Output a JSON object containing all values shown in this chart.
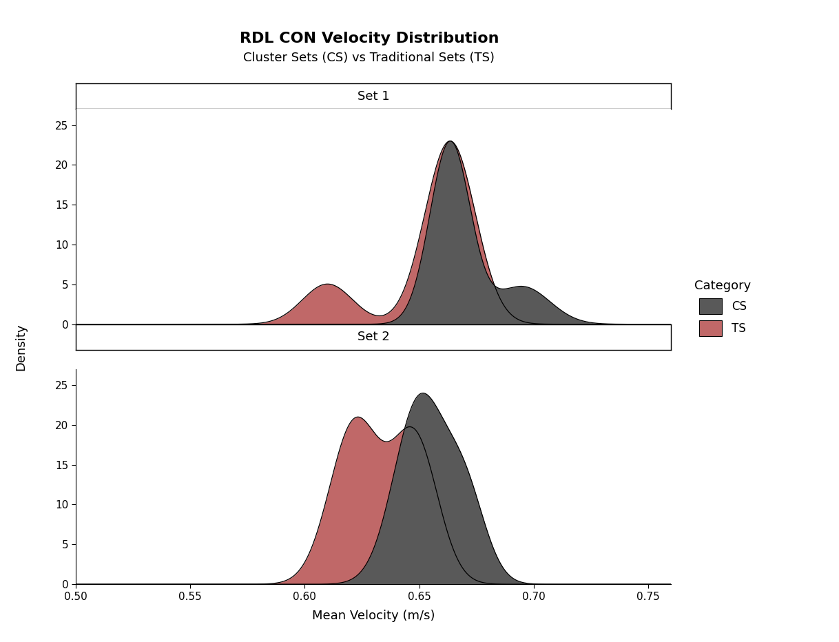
{
  "title": "RDL CON Velocity Distribution",
  "subtitle": "Cluster Sets (CS) vs Traditional Sets (TS)",
  "xlabel": "Mean Velocity (m/s)",
  "ylabel": "Density",
  "xlim": [
    0.5,
    0.76
  ],
  "ylim": [
    0,
    27
  ],
  "xticks": [
    0.5,
    0.55,
    0.6,
    0.65,
    0.7,
    0.75
  ],
  "yticks": [
    0,
    5,
    10,
    15,
    20,
    25
  ],
  "cs_color": "#595959",
  "ts_color": "#C06868",
  "cs_alpha": 1.0,
  "ts_alpha": 1.0,
  "legend_title": "Category",
  "legend_labels": [
    "CS",
    "TS"
  ],
  "set1_label": "Set 1",
  "set2_label": "Set 2",
  "set1_cs_params": {
    "peaks": [
      {
        "mean": 0.6635,
        "std": 0.0088,
        "weight": 0.78
      },
      {
        "mean": 0.695,
        "std": 0.012,
        "weight": 0.22
      }
    ],
    "scale": 23.0
  },
  "set1_ts_params": {
    "peaks": [
      {
        "mean": 0.61,
        "std": 0.011,
        "weight": 0.18
      },
      {
        "mean": 0.6635,
        "std": 0.011,
        "weight": 0.82
      }
    ],
    "scale": 23.0
  },
  "set2_cs_params": {
    "peaks": [
      {
        "mean": 0.65,
        "std": 0.011,
        "weight": 0.72
      },
      {
        "mean": 0.67,
        "std": 0.009,
        "weight": 0.28
      }
    ],
    "scale": 24.0
  },
  "set2_ts_params": {
    "peaks": [
      {
        "mean": 0.622,
        "std": 0.011,
        "weight": 0.55
      },
      {
        "mean": 0.648,
        "std": 0.01,
        "weight": 0.45
      }
    ],
    "scale": 21.0
  }
}
